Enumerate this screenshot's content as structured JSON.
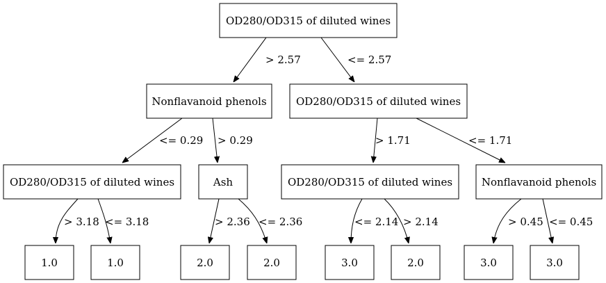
{
  "nodes": {
    "root": "OD280/OD315 of diluted wines",
    "n_left": "Nonflavanoid phenols",
    "n_right": "OD280/OD315 of diluted wines",
    "n_ll": "OD280/OD315 of diluted wines",
    "n_lr": "Ash",
    "n_rl": "OD280/OD315 of diluted wines",
    "n_rr": "Nonflavanoid phenols",
    "leaf1": "1.0",
    "leaf2": "1.0",
    "leaf3": "2.0",
    "leaf4": "2.0",
    "leaf5": "3.0",
    "leaf6": "2.0",
    "leaf7": "3.0",
    "leaf8": "3.0"
  },
  "edges": {
    "root_left": "> 2.57",
    "root_right": "<= 2.57",
    "left_ll": "<= 0.29",
    "left_lr": "> 0.29",
    "right_rl": "> 1.71",
    "right_rr": "<= 1.71",
    "ll_leaf1": "> 3.18",
    "ll_leaf2": "<= 3.18",
    "lr_leaf3": "> 2.36",
    "lr_leaf4": "<= 2.36",
    "rl_leaf5": "<= 2.14",
    "rl_leaf6": "> 2.14",
    "rr_leaf7": "> 0.45",
    "rr_leaf8": "<= 0.45"
  }
}
